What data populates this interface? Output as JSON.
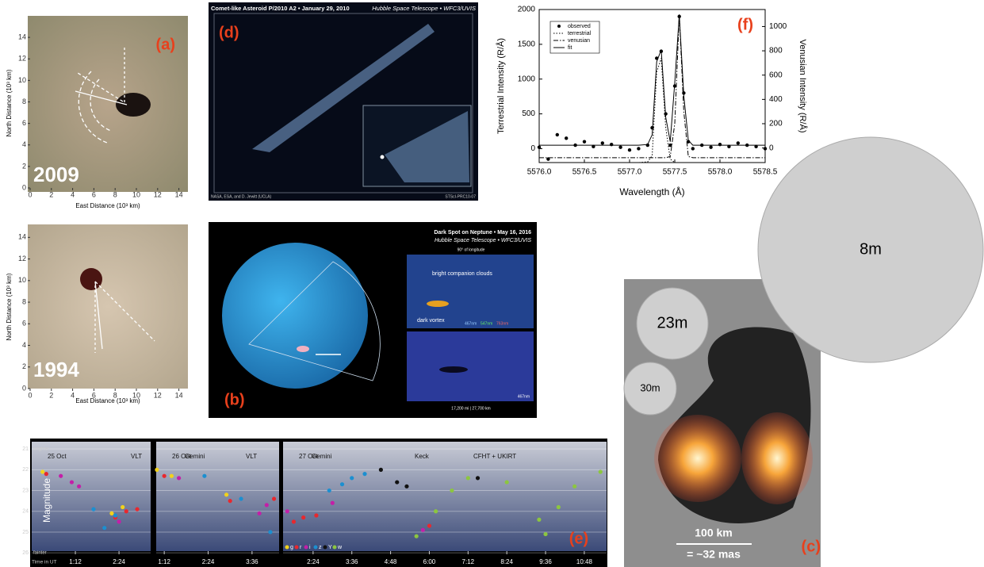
{
  "panel_a": {
    "label": "(a)",
    "year": "2009",
    "ylabel": "North Distance (10³ km)",
    "xlabel": "East Distance (10³ km)",
    "xlim": [
      0,
      15
    ],
    "ylim": [
      0,
      16
    ],
    "xticks": [
      0,
      2,
      4,
      6,
      8,
      10,
      12,
      14
    ],
    "yticks": [
      0,
      2,
      4,
      6,
      8,
      10,
      12,
      14
    ]
  },
  "panel_a2": {
    "year": "1994",
    "ylabel": "North Distance (10³ km)",
    "xlabel": "East Distance (10³ km)",
    "xlim": [
      0,
      15
    ],
    "ylim": [
      0,
      15.2
    ],
    "xticks": [
      0,
      2,
      4,
      6,
      8,
      10,
      12,
      14
    ],
    "yticks": [
      0,
      2,
      4,
      6,
      8,
      10,
      12,
      14
    ]
  },
  "panel_d": {
    "label": "(d)",
    "title": "Comet-like Asteroid P/2010 A2 • January 29, 2010",
    "instrument": "Hubble Space Telescope • WFC3/UVIS",
    "credit": "NASA, ESA, and D. Jewitt (UCLA)",
    "release": "STScI-PRC10-07"
  },
  "panel_b": {
    "label": "(b)",
    "title": "Dark Spot on Neptune • May 16, 2016",
    "instrument": "Hubble Space Telescope • WFC3/UVIS",
    "longitude": "90° of longitude",
    "clouds": "bright companion clouds",
    "vortex": "dark vortex",
    "filters": [
      "467nm",
      "547nm",
      "763nm"
    ],
    "filter_bottom": "467nm",
    "scale": "17,200 mi | 27,700 km"
  },
  "chart_f": {
    "type": "line",
    "label": "(f)",
    "xlabel": "Wavelength (Å)",
    "ylabel": "Terrestrial Intensity (R/Å)",
    "y2label": "Venusian Intensity (R/Å)",
    "xlim": [
      5576.0,
      5578.5
    ],
    "ylim": [
      -200,
      2000
    ],
    "y2lim": [
      -120,
      1140
    ],
    "xticks": [
      {
        "value": 5576.0,
        "label": "5576.0"
      },
      {
        "value": 5576.5,
        "label": "5576.5"
      },
      {
        "value": 5577.0,
        "label": "5577.0"
      },
      {
        "value": 5577.5,
        "label": "5577.5"
      },
      {
        "value": 5578.0,
        "label": "5578.0"
      },
      {
        "value": 5578.5,
        "label": "5578.5"
      }
    ],
    "yticks": [
      0,
      500,
      1000,
      1500,
      2000
    ],
    "y2ticks": [
      0,
      200,
      400,
      600,
      800,
      1000
    ],
    "x": [
      5576.0,
      5576.1,
      5576.2,
      5576.3,
      5576.4,
      5576.5,
      5576.6,
      5576.7,
      5576.8,
      5576.9,
      5577.0,
      5577.1,
      5577.2,
      5577.25,
      5577.3,
      5577.35,
      5577.4,
      5577.45,
      5577.5,
      5577.55,
      5577.6,
      5577.65,
      5577.7,
      5577.8,
      5577.9,
      5578.0,
      5578.1,
      5578.2,
      5578.3,
      5578.4,
      5578.5
    ],
    "series": [
      {
        "name": "observed",
        "color": "#000",
        "style": "dots",
        "values": [
          20,
          -150,
          200,
          150,
          50,
          100,
          30,
          80,
          60,
          20,
          -20,
          0,
          50,
          300,
          1300,
          1400,
          500,
          50,
          900,
          1900,
          800,
          100,
          0,
          50,
          20,
          60,
          30,
          80,
          50,
          30,
          0
        ]
      },
      {
        "name": "terrestrial",
        "color": "#000",
        "style": "dotted",
        "values": [
          -200,
          -200,
          -200,
          -200,
          -200,
          -200,
          -200,
          -200,
          -200,
          -200,
          -200,
          -200,
          -190,
          -100,
          1100,
          1300,
          300,
          -150,
          -200,
          -200,
          -200,
          -200,
          -200,
          -200,
          -200,
          -200,
          -200,
          -200,
          -200,
          -200,
          -200
        ]
      },
      {
        "name": "venusian",
        "color": "#000",
        "style": "dashdot",
        "axis": "y2",
        "values": [
          -80,
          -80,
          -80,
          -80,
          -80,
          -80,
          -80,
          -80,
          -80,
          -80,
          -80,
          -80,
          -80,
          -80,
          -80,
          -80,
          -80,
          -70,
          200,
          1100,
          300,
          -70,
          -80,
          -80,
          -80,
          -80,
          -80,
          -80,
          -80,
          -80,
          -80
        ]
      },
      {
        "name": "fit",
        "color": "#000",
        "style": "solid",
        "values": [
          50,
          50,
          50,
          50,
          50,
          50,
          50,
          50,
          50,
          50,
          50,
          50,
          60,
          200,
          1250,
          1420,
          450,
          100,
          950,
          1920,
          760,
          120,
          50,
          50,
          50,
          50,
          50,
          50,
          50,
          50,
          50
        ]
      }
    ]
  },
  "panel_sizes": {
    "big": "8m",
    "mid": "23m",
    "small": "30m"
  },
  "panel_c": {
    "label": "(c)",
    "scale": "100 km",
    "angle": "= ~32 mas"
  },
  "chart_e": {
    "type": "scatter",
    "label": "(e)",
    "ylabel": "Magnitude",
    "bright": "brighter",
    "faint": "fainter",
    "time": "Time in UT",
    "ylim": [
      26.3,
      20.65
    ],
    "yticks": [
      21,
      22,
      23,
      24,
      25,
      26
    ],
    "panels": [
      {
        "date": "25 Oct",
        "notes": [
          "VLT"
        ],
        "xlim": [
          0,
          3.27
        ],
        "xticks": [
          {
            "value": 1.2,
            "label": "1:12"
          },
          {
            "value": 2.4,
            "label": "2:24"
          }
        ],
        "series": [
          {
            "name": "g",
            "color": "#f2d21b",
            "x": [
              0.3,
              2.2,
              2.5
            ],
            "values": [
              22.1,
              24.1,
              23.8
            ]
          },
          {
            "name": "r",
            "color": "#e8282e",
            "x": [
              0.4,
              2.3,
              2.6,
              2.9
            ],
            "values": [
              22.2,
              24.3,
              24.0,
              23.9
            ]
          },
          {
            "name": "i",
            "color": "#c41fa8",
            "x": [
              0.8,
              1.1,
              1.3,
              2.4
            ],
            "values": [
              22.3,
              22.6,
              22.8,
              24.5
            ]
          },
          {
            "name": "z",
            "color": "#1c8fd0",
            "x": [
              1.7,
              2.0,
              2.3
            ],
            "values": [
              23.9,
              24.8,
              24.2
            ]
          }
        ]
      },
      {
        "date": "26 Oct",
        "notes": [
          "Gemini",
          "VLT"
        ],
        "xlim": [
          0.98,
          4.34
        ],
        "xticks": [
          {
            "value": 1.2,
            "label": "1:12"
          },
          {
            "value": 2.4,
            "label": "2:24"
          },
          {
            "value": 3.6,
            "label": "3:36"
          }
        ],
        "series": [
          {
            "name": "g",
            "color": "#f2d21b",
            "x": [
              1.0,
              1.4,
              2.9
            ],
            "values": [
              22.0,
              22.3,
              23.2
            ]
          },
          {
            "name": "r",
            "color": "#e8282e",
            "x": [
              1.2,
              3.0,
              4.2
            ],
            "values": [
              22.3,
              23.5,
              23.4
            ]
          },
          {
            "name": "i",
            "color": "#c41fa8",
            "x": [
              1.6,
              3.8,
              4.0
            ],
            "values": [
              22.4,
              24.1,
              23.7
            ]
          },
          {
            "name": "z",
            "color": "#1c8fd0",
            "x": [
              2.3,
              4.1,
              3.3
            ],
            "values": [
              22.3,
              25.0,
              23.4
            ]
          }
        ]
      },
      {
        "date": "27 Oct",
        "notes": [
          "Gemini",
          "Keck",
          "CFHT + UKIRT"
        ],
        "xlim": [
          1.47,
          11.49
        ],
        "xticks": [
          {
            "value": 2.4,
            "label": "2:24"
          },
          {
            "value": 3.6,
            "label": "3:36"
          },
          {
            "value": 4.8,
            "label": "4:48"
          },
          {
            "value": 6.0,
            "label": "6:00"
          },
          {
            "value": 7.2,
            "label": "7:12"
          },
          {
            "value": 8.4,
            "label": "8:24"
          },
          {
            "value": 9.6,
            "label": "9:36"
          },
          {
            "value": 10.8,
            "label": "10:48"
          }
        ],
        "series": [
          {
            "name": "g",
            "color": "#f2d21b",
            "x": [],
            "values": []
          },
          {
            "name": "r",
            "color": "#e8282e",
            "x": [
              1.8,
              2.1,
              2.5,
              6.0
            ],
            "values": [
              24.5,
              24.3,
              24.2,
              24.7
            ]
          },
          {
            "name": "i",
            "color": "#c41fa8",
            "x": [
              1.6,
              3.0,
              5.8
            ],
            "values": [
              24.0,
              23.6,
              24.9
            ]
          },
          {
            "name": "z",
            "color": "#1c8fd0",
            "x": [
              2.9,
              3.3,
              3.6,
              4.0
            ],
            "values": [
              23.0,
              22.7,
              22.4,
              22.2
            ]
          },
          {
            "name": "Y",
            "color": "#111111",
            "x": [
              4.5,
              5.0,
              5.3,
              7.5
            ],
            "values": [
              22.0,
              22.6,
              22.8,
              22.4
            ]
          },
          {
            "name": "w",
            "color": "#8cc63f",
            "x": [
              5.6,
              6.2,
              6.7,
              7.2,
              8.4,
              9.4,
              9.6,
              10.0,
              10.5,
              11.3
            ],
            "values": [
              25.2,
              24.0,
              23.0,
              22.4,
              22.6,
              24.4,
              25.1,
              23.8,
              22.8,
              22.1
            ]
          }
        ]
      }
    ]
  }
}
